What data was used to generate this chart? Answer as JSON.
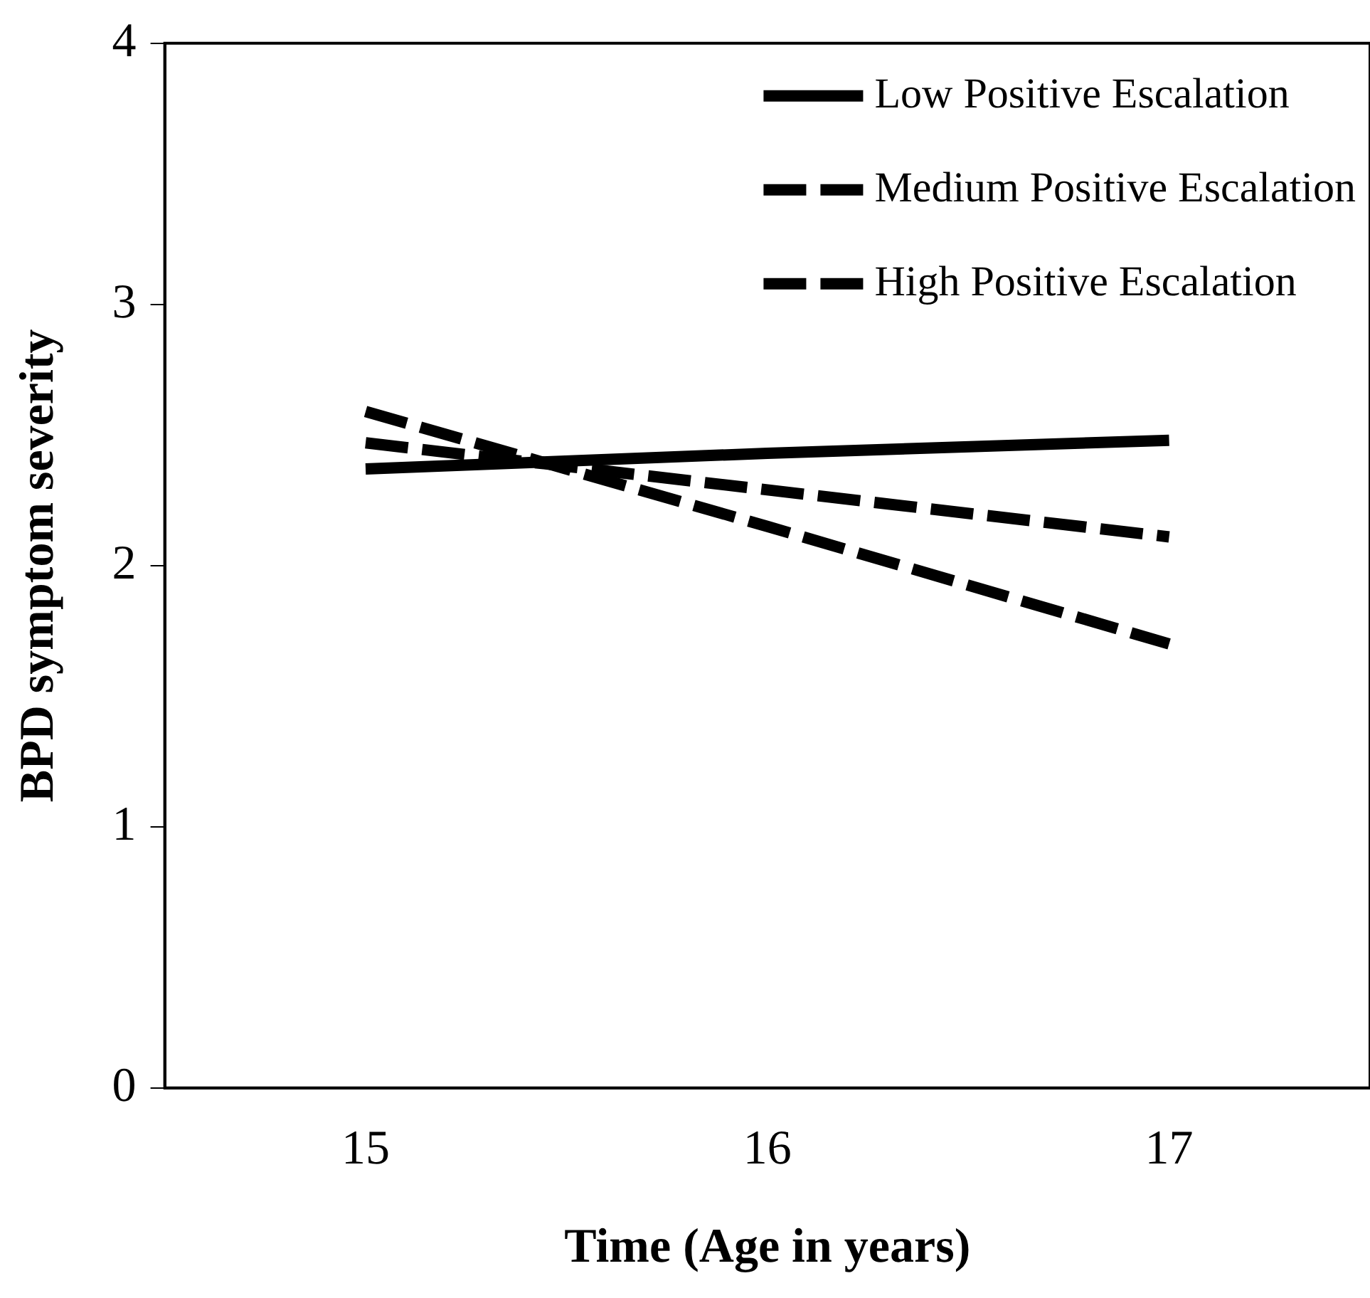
{
  "chart_data": {
    "type": "line",
    "xlabel": "Time (Age in years)",
    "ylabel": "BPD symptom severity",
    "categories": [
      "15",
      "16",
      "17"
    ],
    "series": [
      {
        "name": "Low Positive Escalation",
        "color": "#000000",
        "line_style": "solid",
        "values": [
          2.37,
          2.43,
          2.48
        ]
      },
      {
        "name": "Medium Positive Escalation",
        "color": "#000000",
        "line_style": "dashed",
        "values": [
          2.47,
          2.29,
          2.11
        ]
      },
      {
        "name": "High Positive Escalation",
        "color": "#000000",
        "line_style": "dashed",
        "values": [
          2.59,
          2.15,
          1.7
        ]
      }
    ],
    "ylim": [
      0,
      4
    ],
    "yticks": [
      0,
      1,
      2,
      3,
      4
    ],
    "grid": false,
    "legend": "top right",
    "marker": "none"
  }
}
